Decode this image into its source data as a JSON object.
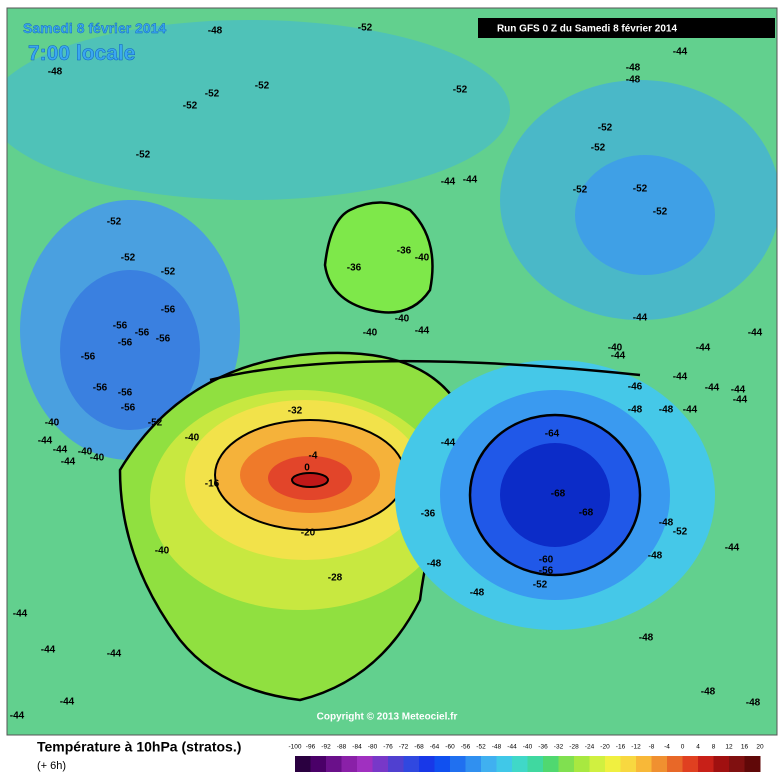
{
  "header": {
    "date": "Samedi 8 février 2014",
    "time": "7:00 locale",
    "run": "Run GFS 0 Z du Samedi 8 février 2014"
  },
  "map": {
    "copyright": "Copyright © 2013 Meteociel.fr",
    "contour_labels": [
      -48,
      -52,
      -48,
      -52,
      -52,
      -52,
      -52,
      -52,
      -44,
      -48,
      -48,
      -52,
      -52,
      -52,
      -52,
      -52,
      -44,
      -44,
      -52,
      -52,
      -52,
      -36,
      -36,
      -40,
      -40,
      -40,
      -44,
      -44,
      -56,
      -56,
      -56,
      -56,
      -56,
      -56,
      -56,
      -56,
      -56,
      -52,
      -40,
      -44,
      -44,
      -44,
      -46,
      -44,
      -44,
      -48,
      -48,
      -44,
      -44,
      -40,
      -40,
      -44,
      -44,
      -40,
      -44,
      -40,
      -32,
      -16,
      0,
      -4,
      -20,
      -28,
      -40,
      -36,
      -44,
      -64,
      -68,
      -68,
      -60,
      -56,
      -52,
      -48,
      -48,
      -48,
      -48,
      -52,
      -44,
      -44,
      -44,
      -44,
      -48,
      -48,
      -48,
      -44,
      -44,
      -44
    ]
  },
  "legend": {
    "title": "Température à 10hPa (stratos.)",
    "step": "(+ 6h)",
    "ticks": [
      -100,
      -96,
      -92,
      -88,
      -84,
      -80,
      -76,
      -72,
      -68,
      -64,
      -60,
      -56,
      -52,
      -48,
      -44,
      -40,
      -36,
      -32,
      -28,
      -24,
      -20,
      -16,
      -12,
      -8,
      -4,
      0,
      4,
      8,
      12,
      16,
      20
    ]
  }
}
